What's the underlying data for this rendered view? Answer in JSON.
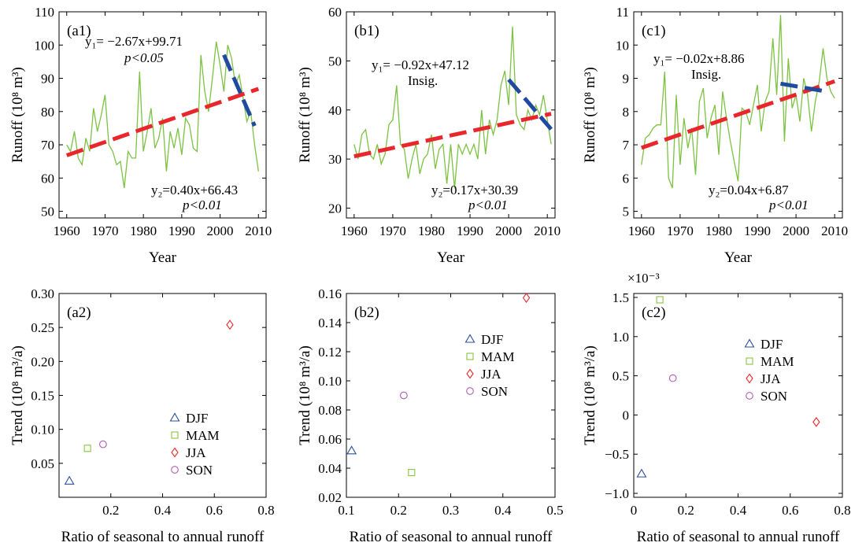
{
  "chart_data": [
    {
      "type": "line",
      "panel_label": "(a1)",
      "xlabel": "Year",
      "ylabel": "Runoff (10⁸ m³)",
      "xlim": [
        1958,
        2012
      ],
      "ylim": [
        48,
        110
      ],
      "xticks": [
        "1960",
        "1970",
        "1980",
        "1990",
        "2000",
        "2010"
      ],
      "yticks": [
        "50",
        "60",
        "70",
        "80",
        "90",
        "100",
        "110"
      ],
      "series": [
        {
          "x": [
            1960,
            1961,
            1962,
            1963,
            1964,
            1965,
            1966,
            1967,
            1968,
            1969,
            1970,
            1971,
            1972,
            1973,
            1974,
            1975,
            1976,
            1977,
            1978,
            1979,
            1980,
            1981,
            1982,
            1983,
            1984,
            1985,
            1986,
            1987,
            1988,
            1989,
            1990,
            1991,
            1992,
            1993,
            1994,
            1995,
            1996,
            1997,
            1998,
            1999,
            2000,
            2001,
            2002,
            2003,
            2004,
            2005,
            2006,
            2007,
            2008,
            2009,
            2010
          ],
          "values": [
            70,
            68,
            74,
            66,
            64,
            72,
            68,
            81,
            74,
            79,
            85,
            70,
            68,
            64,
            65,
            57,
            68,
            66,
            66,
            92,
            68,
            74,
            81,
            69,
            72,
            78,
            62,
            74,
            69,
            75,
            67,
            78,
            76,
            69,
            68,
            97,
            86,
            80,
            90,
            101,
            94,
            86,
            100,
            96,
            88,
            91,
            84,
            77,
            80,
            70,
            62
          ]
        }
      ],
      "trend_lines": [
        {
          "color": "#e8262b",
          "slope": 0.4,
          "intercept_at_1960": 66.43,
          "x_start": 1960,
          "x_end": 2010
        },
        {
          "color": "#1f4aa0",
          "slope": -2.67,
          "intercept_at_1960": 99.71,
          "x_start": 2001,
          "x_end": 2009
        }
      ],
      "eq1": "y₁= −2.67x+99.71",
      "sig1": "p<0.05",
      "eq2": "y₂=0.40x+66.43",
      "sig2": "p<0.01"
    },
    {
      "type": "line",
      "panel_label": "(b1)",
      "xlabel": "Year",
      "ylabel": "Runoff (10⁸ m³)",
      "xlim": [
        1958,
        2012
      ],
      "ylim": [
        18,
        60
      ],
      "xticks": [
        "1960",
        "1970",
        "1980",
        "1990",
        "2000",
        "2010"
      ],
      "yticks": [
        "20",
        "30",
        "40",
        "50",
        "60"
      ],
      "series": [
        {
          "x": [
            1960,
            1961,
            1962,
            1963,
            1964,
            1965,
            1966,
            1967,
            1968,
            1969,
            1970,
            1971,
            1972,
            1973,
            1974,
            1975,
            1976,
            1977,
            1978,
            1979,
            1980,
            1981,
            1982,
            1983,
            1984,
            1985,
            1986,
            1987,
            1988,
            1989,
            1990,
            1991,
            1992,
            1993,
            1994,
            1995,
            1996,
            1997,
            1998,
            1999,
            2000,
            2001,
            2002,
            2003,
            2004,
            2005,
            2006,
            2007,
            2008,
            2009,
            2010,
            2011
          ],
          "values": [
            33,
            30,
            35,
            36,
            31,
            30,
            33,
            29,
            31,
            37,
            38,
            45,
            33,
            32,
            26,
            30,
            33,
            27,
            30,
            31,
            35,
            28,
            32,
            33,
            25,
            33,
            24,
            33,
            31,
            33,
            31,
            33,
            30,
            40,
            31,
            38,
            35,
            38,
            45,
            48,
            41,
            57,
            39,
            37,
            36,
            40,
            38,
            41,
            39,
            43,
            38,
            33
          ]
        }
      ],
      "trend_lines": [
        {
          "color": "#e8262b",
          "slope": 0.17,
          "intercept_at_1960": 30.39,
          "x_start": 1960,
          "x_end": 2011
        },
        {
          "color": "#1f4aa0",
          "slope": -0.92,
          "intercept_at_1960": 47.12,
          "x_start": 2000,
          "x_end": 2011
        }
      ],
      "eq1": "y₁= −0.92x+47.12",
      "sig1": "Insig.",
      "eq2": "y₂=0.17x+30.39",
      "sig2": "p<0.01"
    },
    {
      "type": "line",
      "panel_label": "(c1)",
      "xlabel": "Year",
      "ylabel": "Runoff (10⁸ m³)",
      "xlim": [
        1958,
        2012
      ],
      "ylim": [
        4.8,
        11
      ],
      "xticks": [
        "1960",
        "1970",
        "1980",
        "1990",
        "2000",
        "2010"
      ],
      "yticks": [
        "5",
        "6",
        "7",
        "8",
        "9",
        "10",
        "11"
      ],
      "series": [
        {
          "x": [
            1960,
            1961,
            1962,
            1963,
            1964,
            1965,
            1966,
            1967,
            1968,
            1969,
            1970,
            1971,
            1972,
            1973,
            1974,
            1975,
            1976,
            1977,
            1978,
            1979,
            1980,
            1981,
            1982,
            1983,
            1984,
            1985,
            1986,
            1987,
            1988,
            1989,
            1990,
            1991,
            1992,
            1993,
            1994,
            1995,
            1996,
            1997,
            1998,
            1999,
            2000,
            2001,
            2002,
            2003,
            2004,
            2005,
            2006,
            2007,
            2008,
            2009,
            2010
          ],
          "values": [
            6.4,
            7.2,
            7.3,
            7.5,
            7.6,
            7.6,
            9.2,
            6.0,
            5.7,
            8.5,
            6.4,
            7.8,
            6.9,
            7.5,
            6.1,
            8.3,
            8.7,
            7.2,
            7.8,
            8.2,
            6.7,
            8.6,
            7.8,
            7.1,
            6.5,
            5.9,
            8.1,
            8.0,
            7.6,
            8.2,
            8.8,
            7.4,
            8.3,
            8.6,
            10.2,
            8.5,
            10.9,
            7.1,
            9.6,
            8.1,
            8.5,
            7.7,
            9.0,
            8.5,
            7.4,
            8.3,
            8.9,
            9.9,
            9.0,
            8.6,
            8.4
          ]
        }
      ],
      "trend_lines": [
        {
          "color": "#e8262b",
          "slope": 0.04,
          "intercept_at_1960": 6.87,
          "x_start": 1960,
          "x_end": 2010
        },
        {
          "color": "#1f4aa0",
          "slope": -0.02,
          "intercept_at_1960": 8.86,
          "x_start": 1996,
          "x_end": 2007
        }
      ],
      "eq1": "y₁= −0.02x+8.86",
      "sig1": "Insig.",
      "eq2": "y₂=0.04x+6.87",
      "sig2": "p<0.01"
    },
    {
      "type": "scatter",
      "panel_label": "(a2)",
      "xlabel": "Ratio of seasonal to annual runoff",
      "ylabel": "Trend (10⁸ m³/a)",
      "xlim": [
        0,
        0.8
      ],
      "ylim": [
        0,
        0.3
      ],
      "xticks": [
        "0.2",
        "0.4",
        "0.6",
        "0.8"
      ],
      "yticks": [
        "0.05",
        "0.10",
        "0.15",
        "0.20",
        "0.25",
        "0.30"
      ],
      "series": [
        {
          "name": "DJF",
          "marker": "triangle",
          "color": "#2a4f9a",
          "x": [
            0.04
          ],
          "values": [
            0.024
          ]
        },
        {
          "name": "MAM",
          "marker": "square",
          "color": "#8ac43f",
          "x": [
            0.11
          ],
          "values": [
            0.072
          ]
        },
        {
          "name": "JJA",
          "marker": "diamond",
          "color": "#e8262b",
          "x": [
            0.66
          ],
          "values": [
            0.254
          ]
        },
        {
          "name": "SON",
          "marker": "circle",
          "color": "#b05cb3",
          "x": [
            0.17
          ],
          "values": [
            0.078
          ]
        }
      ]
    },
    {
      "type": "scatter",
      "panel_label": "(b2)",
      "xlabel": "Ratio of seasonal to annual runoff",
      "ylabel": "Trend (10⁸ m³/a)",
      "xlim": [
        0.1,
        0.5
      ],
      "ylim": [
        0.02,
        0.16
      ],
      "xticks": [
        "0.1",
        "0.2",
        "0.3",
        "0.4",
        "0.5"
      ],
      "yticks": [
        "0.02",
        "0.04",
        "0.06",
        "0.08",
        "0.10",
        "0.12",
        "0.14",
        "0.16"
      ],
      "series": [
        {
          "name": "DJF",
          "marker": "triangle",
          "color": "#2a4f9a",
          "x": [
            0.11
          ],
          "values": [
            0.052
          ]
        },
        {
          "name": "MAM",
          "marker": "square",
          "color": "#8ac43f",
          "x": [
            0.225
          ],
          "values": [
            0.037
          ]
        },
        {
          "name": "JJA",
          "marker": "diamond",
          "color": "#e8262b",
          "x": [
            0.445
          ],
          "values": [
            0.157
          ]
        },
        {
          "name": "SON",
          "marker": "circle",
          "color": "#b05cb3",
          "x": [
            0.21
          ],
          "values": [
            0.09
          ]
        }
      ]
    },
    {
      "type": "scatter",
      "panel_label": "(c2)",
      "xlabel": "Ratio of seasonal to annual runoff",
      "ylabel": "Trend (10⁸ m³/a)",
      "multiplier": "×10⁻³",
      "xlim": [
        0,
        0.8
      ],
      "ylim": [
        -1.05,
        1.55
      ],
      "xticks": [
        "0",
        "0.2",
        "0.4",
        "0.6",
        "0.8"
      ],
      "yticks": [
        "−1.0",
        "−0.5",
        "0",
        "0.5",
        "1.0",
        "1.5"
      ],
      "series": [
        {
          "name": "DJF",
          "marker": "triangle",
          "color": "#2a4f9a",
          "x": [
            0.03
          ],
          "values": [
            -0.75
          ]
        },
        {
          "name": "MAM",
          "marker": "square",
          "color": "#8ac43f",
          "x": [
            0.1
          ],
          "values": [
            1.47
          ]
        },
        {
          "name": "JJA",
          "marker": "diamond",
          "color": "#e8262b",
          "x": [
            0.7
          ],
          "values": [
            -0.09
          ]
        },
        {
          "name": "SON",
          "marker": "circle",
          "color": "#b05cb3",
          "x": [
            0.15
          ],
          "values": [
            0.47
          ]
        }
      ]
    }
  ]
}
